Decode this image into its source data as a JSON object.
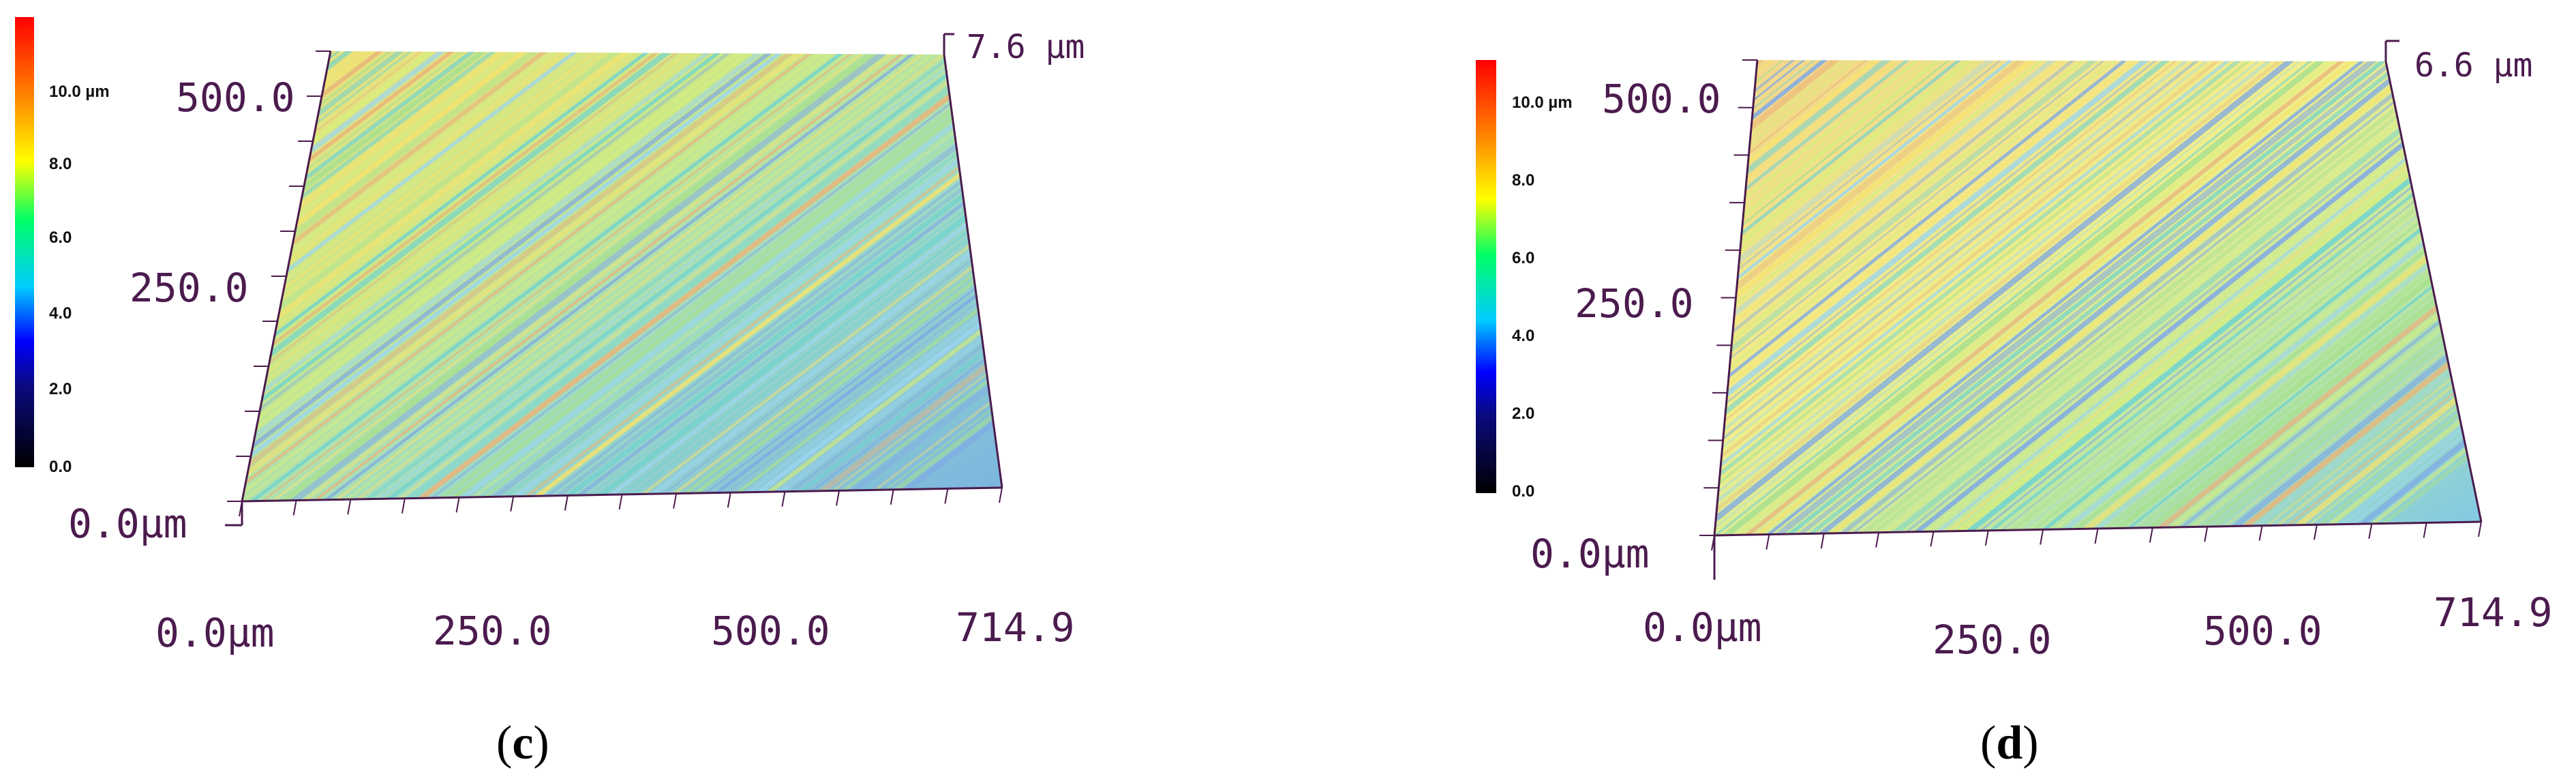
{
  "panels": [
    {
      "caption_open": "(",
      "caption_letter": "c",
      "caption_close": ")",
      "z_max_label": "7.6 µm",
      "z_origin_label": "0.0µm",
      "y_ticks": [
        "250.0",
        "500.0"
      ],
      "x_ticks": [
        "0.0µm",
        "250.0",
        "500.0",
        "714.9"
      ],
      "colorbar_labels": [
        "0.0",
        "2.0",
        "4.0",
        "6.0",
        "8.0",
        "10.0 µm"
      ]
    },
    {
      "caption_open": "(",
      "caption_letter": "d",
      "caption_close": ")",
      "z_max_label": "6.6 µm",
      "z_origin_label": "0.0µm",
      "y_ticks": [
        "250.0",
        "500.0"
      ],
      "x_ticks": [
        "0.0µm",
        "250.0",
        "500.0",
        "714.9"
      ],
      "colorbar_labels": [
        "0.0",
        "2.0",
        "4.0",
        "6.0",
        "8.0",
        "10.0 µm"
      ]
    }
  ],
  "colorbar_colors": [
    "#000000",
    "#0000ff",
    "#00ccff",
    "#00ff66",
    "#ffff00",
    "#ff8800",
    "#ff0000"
  ],
  "axis_color": "#4b1b4e"
}
